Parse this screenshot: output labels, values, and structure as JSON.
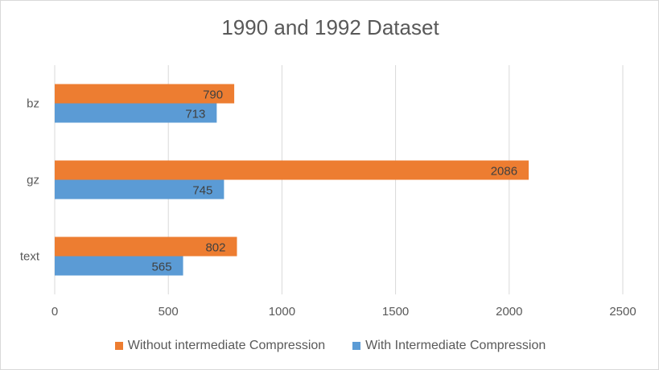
{
  "chart_data": {
    "type": "bar",
    "orientation": "horizontal",
    "title": "1990 and 1992 Dataset",
    "categories": [
      "bz",
      "gz",
      "text"
    ],
    "series": [
      {
        "name": "Without intermediate Compression",
        "color": "#ed7d31",
        "values": [
          790,
          2086,
          802
        ]
      },
      {
        "name": "With Intermediate Compression",
        "color": "#5b9bd5",
        "values": [
          713,
          745,
          565
        ]
      }
    ],
    "xlim": [
      0,
      2500
    ],
    "xticks": [
      0,
      500,
      1000,
      1500,
      2000,
      2500
    ],
    "xlabel": "",
    "ylabel": "",
    "grid": true,
    "legend_position": "bottom"
  }
}
